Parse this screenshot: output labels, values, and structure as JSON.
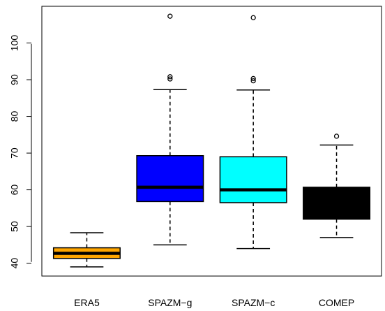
{
  "chart_data": {
    "type": "boxplot",
    "title": "",
    "xlabel": "",
    "ylabel": "",
    "ylim": [
      36.5,
      110
    ],
    "yticks": [
      40,
      50,
      60,
      70,
      80,
      90,
      100
    ],
    "ytick_labels": [
      "40",
      "50",
      "60",
      "70",
      "80",
      "90",
      "100"
    ],
    "categories": [
      "ERA5",
      "SPAZM−g",
      "SPAZM−c",
      "COMEP"
    ],
    "boxes": [
      {
        "name": "ERA5",
        "color": "#ffa500",
        "whisker_low": 39.0,
        "q1": 41.3,
        "median": 42.7,
        "q3": 44.2,
        "whisker_high": 48.3,
        "outliers": []
      },
      {
        "name": "SPAZM−g",
        "color": "#0000ff",
        "whisker_low": 45.0,
        "q1": 56.8,
        "median": 60.7,
        "q3": 69.3,
        "whisker_high": 87.3,
        "outliers": [
          90.2,
          90.8,
          107.3
        ]
      },
      {
        "name": "SPAZM−c",
        "color": "#00ffff",
        "whisker_low": 44.0,
        "q1": 56.5,
        "median": 60.0,
        "q3": 69.0,
        "whisker_high": 87.2,
        "outliers": [
          89.7,
          90.3,
          106.9
        ]
      },
      {
        "name": "COMEP",
        "color": "#000000",
        "whisker_low": 47.0,
        "q1": 52.0,
        "median": 58.0,
        "q3": 60.7,
        "whisker_high": 72.2,
        "outliers": [
          74.6
        ]
      }
    ],
    "grid": false,
    "legend": "none"
  }
}
